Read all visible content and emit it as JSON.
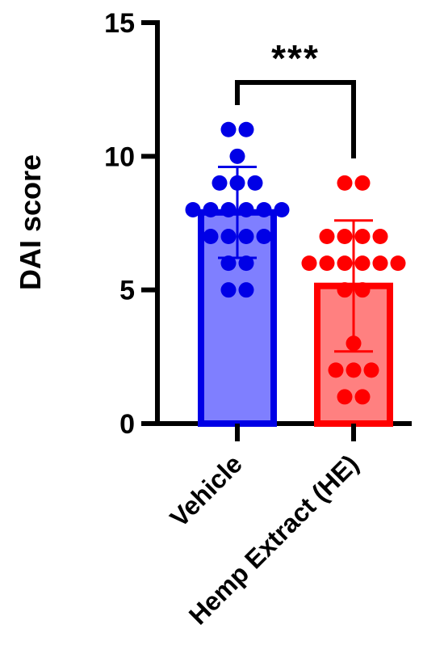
{
  "chart_data": {
    "type": "bar",
    "ylabel": "DAI score",
    "ylim": [
      0,
      15
    ],
    "yticks": [
      0,
      5,
      10,
      15
    ],
    "categories": [
      "Vehicle",
      "Hemp Extract (HE)"
    ],
    "series": [
      {
        "mean": 7.9,
        "sd": 1.7,
        "fill": "#7f7fff",
        "edge": "#0000e6",
        "points": [
          11,
          11,
          10,
          9,
          9,
          9,
          8,
          8,
          8,
          8,
          8,
          8,
          7,
          7,
          7,
          7,
          6,
          6,
          5,
          5
        ]
      },
      {
        "mean": 5.15,
        "sd": 2.45,
        "fill": "#ff8080",
        "edge": "#ff0000",
        "points": [
          9,
          9,
          7,
          7,
          7,
          7,
          6,
          6,
          6,
          6,
          6,
          6,
          5,
          5,
          3,
          2,
          2,
          2,
          1,
          1
        ]
      }
    ],
    "significance": {
      "label": "***",
      "between": [
        0,
        1
      ]
    }
  }
}
